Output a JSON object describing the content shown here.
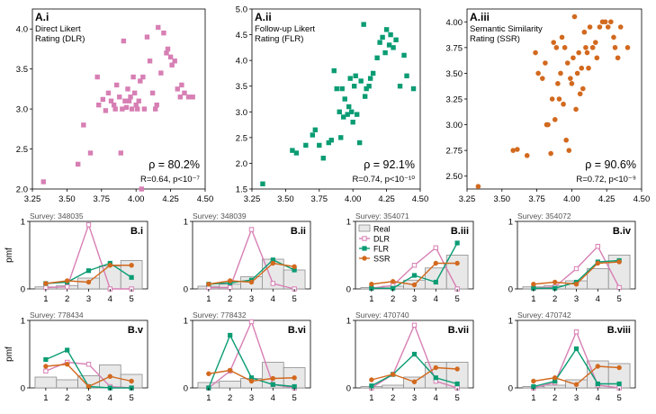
{
  "figure": {
    "colors": {
      "dlr": "#d77fb4",
      "flr": "#0a9c73",
      "ssr": "#d2691e",
      "real_fill": "#e8e8e8",
      "real_stroke": "#8c8c8c",
      "axis": "#000000"
    }
  },
  "chart_data": [
    {
      "type": "scatter",
      "panel": "A.i",
      "title_lines": [
        "Direct Likert",
        "Rating (DLR)"
      ],
      "marker": "square",
      "color": "#d77fb4",
      "xlim": [
        3.25,
        4.5
      ],
      "ylim": [
        2.0,
        4.25
      ],
      "xticks": [
        "3.25",
        "3.50",
        "3.75",
        "4.00",
        "4.25",
        "4.50"
      ],
      "yticks": [
        "2.0",
        "2.5",
        "3.0",
        "3.5",
        "4.0"
      ],
      "rho_text": "ρ = 80.2%",
      "stats_text": "R=0.64, p<10⁻⁷",
      "points": [
        [
          3.33,
          2.09
        ],
        [
          3.58,
          2.31
        ],
        [
          3.62,
          2.8
        ],
        [
          3.67,
          2.45
        ],
        [
          3.73,
          3.05
        ],
        [
          3.72,
          3.4
        ],
        [
          3.76,
          3.12
        ],
        [
          3.78,
          2.98
        ],
        [
          3.8,
          3.2
        ],
        [
          3.82,
          3.1
        ],
        [
          3.84,
          3.05
        ],
        [
          3.85,
          3.0
        ],
        [
          3.86,
          3.3
        ],
        [
          3.88,
          3.15
        ],
        [
          3.89,
          2.45
        ],
        [
          3.9,
          3.0
        ],
        [
          3.91,
          3.85
        ],
        [
          3.92,
          3.1
        ],
        [
          3.93,
          3.02
        ],
        [
          3.94,
          3.25
        ],
        [
          3.95,
          3.1
        ],
        [
          3.96,
          3.15
        ],
        [
          3.97,
          3.0
        ],
        [
          3.98,
          3.4
        ],
        [
          3.99,
          3.2
        ],
        [
          4.0,
          3.05
        ],
        [
          4.01,
          3.0
        ],
        [
          4.02,
          3.1
        ],
        [
          4.03,
          3.35
        ],
        [
          4.04,
          2.0
        ],
        [
          4.05,
          3.4
        ],
        [
          4.06,
          3.0
        ],
        [
          4.08,
          3.9
        ],
        [
          4.1,
          3.6
        ],
        [
          4.12,
          3.2
        ],
        [
          4.14,
          3.0
        ],
        [
          4.15,
          3.05
        ],
        [
          4.16,
          4.02
        ],
        [
          4.18,
          3.45
        ],
        [
          4.2,
          3.95
        ],
        [
          4.22,
          3.7
        ],
        [
          4.23,
          3.75
        ],
        [
          4.25,
          3.65
        ],
        [
          4.26,
          3.55
        ],
        [
          4.28,
          3.6
        ],
        [
          4.3,
          3.25
        ],
        [
          4.32,
          3.15
        ],
        [
          4.33,
          3.3
        ],
        [
          4.35,
          3.2
        ],
        [
          4.38,
          3.15
        ],
        [
          4.41,
          3.15
        ]
      ]
    },
    {
      "type": "scatter",
      "panel": "A.ii",
      "title_lines": [
        "Follow-up Likert",
        "Rating (FLR)"
      ],
      "marker": "square",
      "color": "#0a9c73",
      "xlim": [
        3.25,
        4.5
      ],
      "ylim": [
        1.5,
        5.0
      ],
      "xticks": [
        "3.25",
        "3.50",
        "3.75",
        "4.00",
        "4.25",
        "4.50"
      ],
      "yticks": [
        "1.5",
        "2.0",
        "2.5",
        "3.0",
        "3.5",
        "4.0",
        "4.5",
        "5.0"
      ],
      "rho_text": "ρ = 92.1%",
      "stats_text": "R=0.74, p<10⁻¹⁰",
      "points": [
        [
          3.33,
          1.6
        ],
        [
          3.55,
          2.25
        ],
        [
          3.58,
          2.2
        ],
        [
          3.65,
          2.35
        ],
        [
          3.7,
          2.55
        ],
        [
          3.72,
          2.65
        ],
        [
          3.75,
          2.35
        ],
        [
          3.78,
          2.1
        ],
        [
          3.82,
          2.4
        ],
        [
          3.84,
          2.45
        ],
        [
          3.86,
          3.8
        ],
        [
          3.88,
          3.45
        ],
        [
          3.9,
          3.0
        ],
        [
          3.91,
          2.5
        ],
        [
          3.92,
          3.45
        ],
        [
          3.93,
          2.9
        ],
        [
          3.94,
          3.25
        ],
        [
          3.96,
          2.95
        ],
        [
          3.97,
          3.1
        ],
        [
          3.98,
          3.65
        ],
        [
          3.99,
          3.0
        ],
        [
          4.0,
          2.8
        ],
        [
          4.01,
          3.5
        ],
        [
          4.02,
          3.7
        ],
        [
          4.03,
          2.95
        ],
        [
          4.05,
          2.4
        ],
        [
          4.06,
          3.6
        ],
        [
          4.08,
          4.7
        ],
        [
          4.09,
          3.3
        ],
        [
          4.1,
          3.45
        ],
        [
          4.12,
          3.5
        ],
        [
          4.13,
          3.65
        ],
        [
          4.15,
          3.75
        ],
        [
          4.18,
          4.05
        ],
        [
          4.2,
          4.35
        ],
        [
          4.22,
          4.45
        ],
        [
          4.24,
          4.15
        ],
        [
          4.25,
          4.6
        ],
        [
          4.27,
          4.3
        ],
        [
          4.28,
          4.5
        ],
        [
          4.3,
          4.25
        ],
        [
          4.32,
          4.4
        ],
        [
          4.35,
          3.5
        ],
        [
          4.38,
          4.1
        ],
        [
          4.4,
          3.7
        ],
        [
          4.45,
          3.45
        ]
      ]
    },
    {
      "type": "scatter",
      "panel": "A.iii",
      "title_lines": [
        "Semantic Similarity",
        "Rating (SSR)"
      ],
      "marker": "circle",
      "color": "#d2691e",
      "xlim": [
        3.25,
        4.5
      ],
      "ylim": [
        2.375,
        4.125
      ],
      "xticks": [
        "3.25",
        "3.50",
        "3.75",
        "4.00",
        "4.25",
        "4.50"
      ],
      "yticks": [
        "2.50",
        "2.75",
        "3.00",
        "3.25",
        "3.50",
        "3.75",
        "4.00"
      ],
      "rho_text": "ρ = 90.6%",
      "stats_text": "R=0.72, p<10⁻⁹",
      "points": [
        [
          3.33,
          2.4
        ],
        [
          3.58,
          2.75
        ],
        [
          3.61,
          2.76
        ],
        [
          3.68,
          2.7
        ],
        [
          3.74,
          3.7
        ],
        [
          3.76,
          3.5
        ],
        [
          3.79,
          3.45
        ],
        [
          3.81,
          3.6
        ],
        [
          3.82,
          3.0
        ],
        [
          3.83,
          3.0
        ],
        [
          3.85,
          2.72
        ],
        [
          3.86,
          3.25
        ],
        [
          3.87,
          3.8
        ],
        [
          3.88,
          3.05
        ],
        [
          3.89,
          3.75
        ],
        [
          3.9,
          3.4
        ],
        [
          3.91,
          3.25
        ],
        [
          3.92,
          3.5
        ],
        [
          3.93,
          3.85
        ],
        [
          3.94,
          3.2
        ],
        [
          3.95,
          3.75
        ],
        [
          3.96,
          2.85
        ],
        [
          3.97,
          3.6
        ],
        [
          3.98,
          2.75
        ],
        [
          3.99,
          3.45
        ],
        [
          4.0,
          3.4
        ],
        [
          4.01,
          3.65
        ],
        [
          4.02,
          4.05
        ],
        [
          4.03,
          3.15
        ],
        [
          4.04,
          3.5
        ],
        [
          4.05,
          3.7
        ],
        [
          4.06,
          3.3
        ],
        [
          4.07,
          3.55
        ],
        [
          4.08,
          3.35
        ],
        [
          4.09,
          3.9
        ],
        [
          4.1,
          3.75
        ],
        [
          4.11,
          3.7
        ],
        [
          4.12,
          3.55
        ],
        [
          4.13,
          3.95
        ],
        [
          4.15,
          3.75
        ],
        [
          4.17,
          3.8
        ],
        [
          4.18,
          3.65
        ],
        [
          4.2,
          3.95
        ],
        [
          4.22,
          4.0
        ],
        [
          4.24,
          4.0
        ],
        [
          4.26,
          3.95
        ],
        [
          4.28,
          4.0
        ],
        [
          4.3,
          3.85
        ],
        [
          4.31,
          3.75
        ],
        [
          4.33,
          3.65
        ],
        [
          4.35,
          3.95
        ],
        [
          4.4,
          3.75
        ]
      ]
    },
    {
      "type": "line",
      "panel": "B.i",
      "survey": "Survey: 348035",
      "categories": [
        "1",
        "2",
        "3",
        "4",
        "5"
      ],
      "ylim": [
        0,
        1
      ],
      "ylabel": "pmf",
      "series": [
        {
          "name": "Real",
          "values": [
            0.03,
            0.05,
            0.16,
            0.34,
            0.42
          ]
        },
        {
          "name": "DLR",
          "values": [
            0.02,
            0.03,
            0.95,
            0.0,
            0.0
          ]
        },
        {
          "name": "FLR",
          "values": [
            0.08,
            0.1,
            0.27,
            0.38,
            0.17
          ]
        },
        {
          "name": "SSR",
          "values": [
            0.08,
            0.12,
            0.1,
            0.35,
            0.35
          ]
        }
      ]
    },
    {
      "type": "line",
      "panel": "B.ii",
      "survey": "Survey: 348039",
      "categories": [
        "1",
        "2",
        "3",
        "4",
        "5"
      ],
      "ylim": [
        0,
        1
      ],
      "ylabel": "",
      "series": [
        {
          "name": "Real",
          "values": [
            0.04,
            0.07,
            0.18,
            0.44,
            0.28
          ]
        },
        {
          "name": "DLR",
          "values": [
            0.02,
            0.02,
            0.88,
            0.08,
            0.0
          ]
        },
        {
          "name": "FLR",
          "values": [
            0.07,
            0.09,
            0.13,
            0.43,
            0.28
          ]
        },
        {
          "name": "SSR",
          "values": [
            0.07,
            0.12,
            0.1,
            0.38,
            0.33
          ]
        }
      ]
    },
    {
      "type": "line",
      "panel": "B.iii",
      "survey": "Survey: 354071",
      "categories": [
        "1",
        "2",
        "3",
        "4",
        "5"
      ],
      "ylim": [
        0,
        1
      ],
      "ylabel": "",
      "series": [
        {
          "name": "Real",
          "values": [
            0.02,
            0.04,
            0.13,
            0.31,
            0.5
          ]
        },
        {
          "name": "DLR",
          "values": [
            0.01,
            0.05,
            0.35,
            0.61,
            0.0
          ]
        },
        {
          "name": "FLR",
          "values": [
            0.01,
            0.01,
            0.2,
            0.1,
            0.68
          ]
        },
        {
          "name": "SSR",
          "values": [
            0.07,
            0.11,
            0.06,
            0.38,
            0.38
          ]
        }
      ]
    },
    {
      "type": "line",
      "panel": "B.iv",
      "survey": "Survey: 354072",
      "categories": [
        "1",
        "2",
        "3",
        "4",
        "5"
      ],
      "ylim": [
        0,
        1
      ],
      "ylabel": "",
      "series": [
        {
          "name": "Real",
          "values": [
            0.03,
            0.05,
            0.12,
            0.3,
            0.5
          ]
        },
        {
          "name": "DLR",
          "values": [
            0.01,
            0.03,
            0.3,
            0.63,
            0.02
          ]
        },
        {
          "name": "FLR",
          "values": [
            0.01,
            0.01,
            0.1,
            0.4,
            0.42
          ]
        },
        {
          "name": "SSR",
          "values": [
            0.07,
            0.1,
            0.07,
            0.38,
            0.4
          ]
        }
      ]
    },
    {
      "type": "line",
      "panel": "B.v",
      "survey": "Survey: 778434",
      "categories": [
        "1",
        "2",
        "3",
        "4",
        "5"
      ],
      "ylim": [
        0,
        1
      ],
      "ylabel": "pmf",
      "series": [
        {
          "name": "Real",
          "values": [
            0.16,
            0.12,
            0.18,
            0.34,
            0.2
          ]
        },
        {
          "name": "DLR",
          "values": [
            0.25,
            0.38,
            0.35,
            0.02,
            0.0
          ]
        },
        {
          "name": "FLR",
          "values": [
            0.42,
            0.56,
            0.02,
            0.0,
            0.0
          ]
        },
        {
          "name": "SSR",
          "values": [
            0.32,
            0.35,
            0.02,
            0.17,
            0.1
          ]
        }
      ]
    },
    {
      "type": "line",
      "panel": "B.vi",
      "survey": "Survey: 778432",
      "categories": [
        "1",
        "2",
        "3",
        "4",
        "5"
      ],
      "ylim": [
        0,
        1
      ],
      "ylabel": "",
      "series": [
        {
          "name": "Real",
          "values": [
            0.08,
            0.1,
            0.14,
            0.38,
            0.3
          ]
        },
        {
          "name": "DLR",
          "values": [
            0.0,
            0.25,
            0.98,
            0.05,
            0.0
          ]
        },
        {
          "name": "FLR",
          "values": [
            0.0,
            0.78,
            0.15,
            0.05,
            0.02
          ]
        },
        {
          "name": "SSR",
          "values": [
            0.21,
            0.26,
            0.1,
            0.14,
            0.15
          ]
        }
      ]
    },
    {
      "type": "line",
      "panel": "B.vii",
      "survey": "Survey: 470740",
      "categories": [
        "1",
        "2",
        "3",
        "4",
        "5"
      ],
      "ylim": [
        0,
        1
      ],
      "ylabel": "",
      "series": [
        {
          "name": "Real",
          "values": [
            0.02,
            0.04,
            0.16,
            0.38,
            0.38
          ]
        },
        {
          "name": "DLR",
          "values": [
            0.0,
            0.2,
            0.93,
            0.1,
            0.0
          ]
        },
        {
          "name": "FLR",
          "values": [
            0.03,
            0.2,
            0.5,
            0.15,
            0.06
          ]
        },
        {
          "name": "SSR",
          "values": [
            0.12,
            0.2,
            0.09,
            0.3,
            0.28
          ]
        }
      ]
    },
    {
      "type": "line",
      "panel": "B.viii",
      "survey": "Survey: 470742",
      "categories": [
        "1",
        "2",
        "3",
        "4",
        "5"
      ],
      "ylim": [
        0,
        1
      ],
      "ylabel": "",
      "series": [
        {
          "name": "Real",
          "values": [
            0.02,
            0.04,
            0.12,
            0.4,
            0.36
          ]
        },
        {
          "name": "DLR",
          "values": [
            0.0,
            0.08,
            0.83,
            0.04,
            0.0
          ]
        },
        {
          "name": "FLR",
          "values": [
            0.02,
            0.1,
            0.58,
            0.06,
            0.06
          ]
        },
        {
          "name": "SSR",
          "values": [
            0.1,
            0.15,
            0.05,
            0.32,
            0.3
          ]
        }
      ]
    }
  ],
  "legend": {
    "placement": "inside panel B.iii, upper-left",
    "items": [
      "Real",
      "DLR",
      "FLR",
      "SSR"
    ]
  }
}
